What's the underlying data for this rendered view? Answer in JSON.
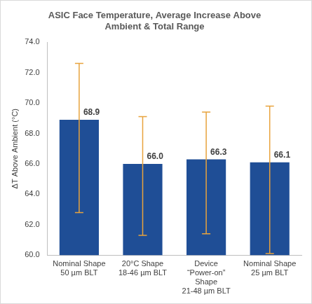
{
  "chart_data": {
    "type": "bar",
    "title": [
      "ASIC Face Temperature, Average Increase Above",
      "Ambient & Total Range"
    ],
    "y_label": "ΔT Above Ambient (°C)",
    "categories": [
      [
        "Nominal Shape",
        "50 µm BLT"
      ],
      [
        "20°C Shape",
        "18-46 µm BLT"
      ],
      [
        "Device",
        "“Power-on”",
        "Shape",
        "21-48 µm BLT"
      ],
      [
        "Nominal Shape",
        "25 µm BLT"
      ]
    ],
    "values": [
      68.9,
      66.0,
      66.3,
      66.1
    ],
    "value_labels": [
      "68.9",
      "66.0",
      "66.3",
      "66.1"
    ],
    "data_labels": true,
    "error_low": [
      62.8,
      61.3,
      61.4,
      60.1
    ],
    "error_high": [
      72.6,
      69.1,
      69.4,
      69.8
    ],
    "error_color": "#e8a33d",
    "color": "#1f4e96",
    "ylim": [
      60,
      74
    ],
    "yticks": [
      {
        "value": 60,
        "label": "60.0"
      },
      {
        "value": 62,
        "label": "62.0"
      },
      {
        "value": 64,
        "label": "64.0"
      },
      {
        "value": 66,
        "label": "66.0"
      },
      {
        "value": 68,
        "label": "68.0"
      },
      {
        "value": 70,
        "label": "70.0"
      },
      {
        "value": 72,
        "label": "72.0"
      },
      {
        "value": 74,
        "label": "74.0"
      }
    ],
    "grid": false
  }
}
